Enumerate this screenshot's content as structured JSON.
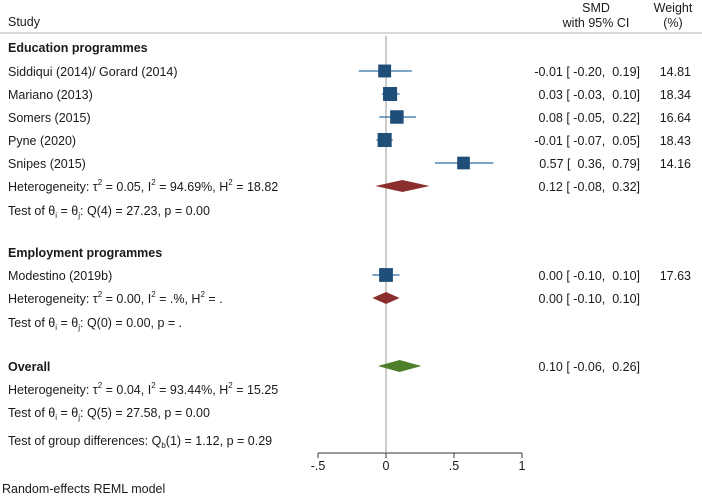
{
  "header": {
    "study": "Study",
    "smd_line1": "SMD",
    "smd_line2": "with 95% CI",
    "weight_line1": "Weight",
    "weight_line2": "(%)"
  },
  "groups": [
    {
      "name": "Education programmes",
      "studies": [
        {
          "label": "Siddiqui (2014)/ Gorard (2014)",
          "es": -0.01,
          "lo": -0.2,
          "hi": 0.19,
          "ci_text": "-0.01 [ -0.20,  0.19]",
          "weight": "14.81"
        },
        {
          "label": "Mariano (2013)",
          "es": 0.03,
          "lo": -0.03,
          "hi": 0.1,
          "ci_text": "0.03 [ -0.03,  0.10]",
          "weight": "18.34"
        },
        {
          "label": "Somers (2015)",
          "es": 0.08,
          "lo": -0.05,
          "hi": 0.22,
          "ci_text": "0.08 [ -0.05,  0.22]",
          "weight": "16.64"
        },
        {
          "label": "Pyne (2020)",
          "es": -0.01,
          "lo": -0.07,
          "hi": 0.05,
          "ci_text": "-0.01 [ -0.07,  0.05]",
          "weight": "18.43"
        },
        {
          "label": "Snipes (2015)",
          "es": 0.57,
          "lo": 0.36,
          "hi": 0.79,
          "ci_text": "0.57 [  0.36,  0.79]",
          "weight": "14.16"
        }
      ],
      "pooled": {
        "es": 0.12,
        "lo": -0.08,
        "hi": 0.32,
        "ci_text": "0.12 [ -0.08,  0.32]"
      },
      "heterogeneity": {
        "prefix": "Heterogeneity: ",
        "tau2": "τ",
        "tau2_value": " = 0.05, I",
        "i2_value": " = 94.69%, H",
        "h2_value": " = 18.82"
      },
      "test": {
        "prefix": "Test of θ",
        "mid": " = θ",
        "suffix": ": Q(4) = 27.23, p = 0.00"
      }
    },
    {
      "name": "Employment programmes",
      "studies": [
        {
          "label": "Modestino (2019b)",
          "es": 0.0,
          "lo": -0.1,
          "hi": 0.1,
          "ci_text": "0.00 [ -0.10,  0.10]",
          "weight": "17.63"
        }
      ],
      "pooled": {
        "es": 0.0,
        "lo": -0.1,
        "hi": 0.1,
        "ci_text": "0.00 [ -0.10,  0.10]"
      },
      "heterogeneity": {
        "prefix": "Heterogeneity: ",
        "tau2": "τ",
        "tau2_value": " = 0.00, I",
        "i2_value": " = .%, H",
        "h2_value": " = ."
      },
      "test": {
        "prefix": "Test of θ",
        "mid": " = θ",
        "suffix": ": Q(0) = 0.00, p = ."
      }
    }
  ],
  "overall": {
    "name": "Overall",
    "pooled": {
      "es": 0.1,
      "lo": -0.06,
      "hi": 0.26,
      "ci_text": "0.10 [ -0.06,  0.26]"
    },
    "heterogeneity": {
      "prefix": "Heterogeneity: ",
      "tau2": "τ",
      "tau2_value": " = 0.04, I",
      "i2_value": " = 93.44%, H",
      "h2_value": " = 15.25"
    },
    "test": {
      "prefix": "Test of θ",
      "mid": " = θ",
      "suffix": ": Q(5) = 27.58, p = 0.00"
    },
    "group_test": {
      "prefix": "Test of group differences: Q",
      "sub": "b",
      "suffix": "(1) = 1.12, p = 0.29"
    }
  },
  "footnote": "Random-effects REML model",
  "chart_data": {
    "type": "forest",
    "xlim": [
      -0.5,
      1
    ],
    "ticks": [
      -0.5,
      0,
      0.5,
      1
    ],
    "tick_labels": [
      "-.5",
      "0",
      ".5",
      "1"
    ],
    "reference_line": 0,
    "colors": {
      "marker": "#1f4e79",
      "ci_line": "#2e6da4",
      "group_diamond": "#8b2e2e",
      "overall_diamond": "#4f7f2a",
      "refline": "#9a9a9a"
    }
  }
}
